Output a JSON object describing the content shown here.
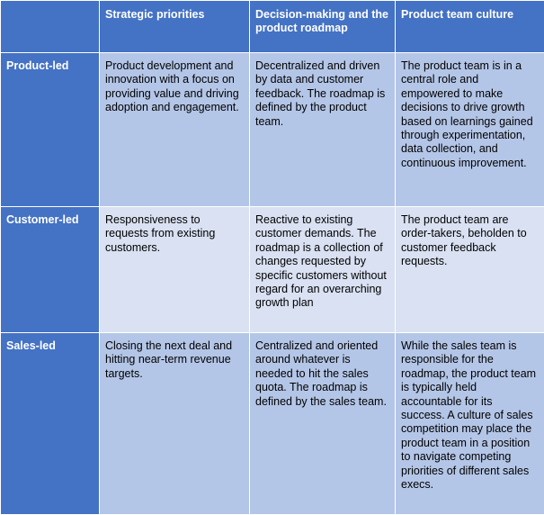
{
  "header": {
    "corner": "",
    "columns": [
      "Strategic priorities",
      "Decision-making and the product roadmap",
      "Product team culture"
    ]
  },
  "rows": [
    {
      "label": "Product-led",
      "cells": [
        "Product development and innovation with a focus on providing value and driving adoption and engagement.",
        "Decentralized and driven by data and customer feedback. The roadmap is defined by the product team.",
        "The product team is in a central role and empowered to make decisions to drive growth based on learnings gained through experimentation, data collection, and continuous improvement."
      ]
    },
    {
      "label": "Customer-led",
      "cells": [
        "Responsiveness to requests from existing customers.",
        "Reactive to existing customer demands. The roadmap is a collection of changes requested by specific customers without regard for an overarching growth plan",
        "The product team are order-takers, beholden to customer feedback requests."
      ]
    },
    {
      "label": "Sales-led",
      "cells": [
        "Closing the next deal and hitting near-term revenue targets.",
        "Centralized and oriented around whatever is needed to hit the sales quota. The roadmap is defined by the sales team.",
        "While the sales team is responsible for the roadmap, the product team is typically held accountable for its success. A culture of sales competition may place the product team in a position to navigate competing priorities of different sales execs."
      ]
    }
  ],
  "colors": {
    "header_bg": "#4472c4",
    "row_dark": "#b4c6e7",
    "row_light": "#d9e1f2"
  }
}
